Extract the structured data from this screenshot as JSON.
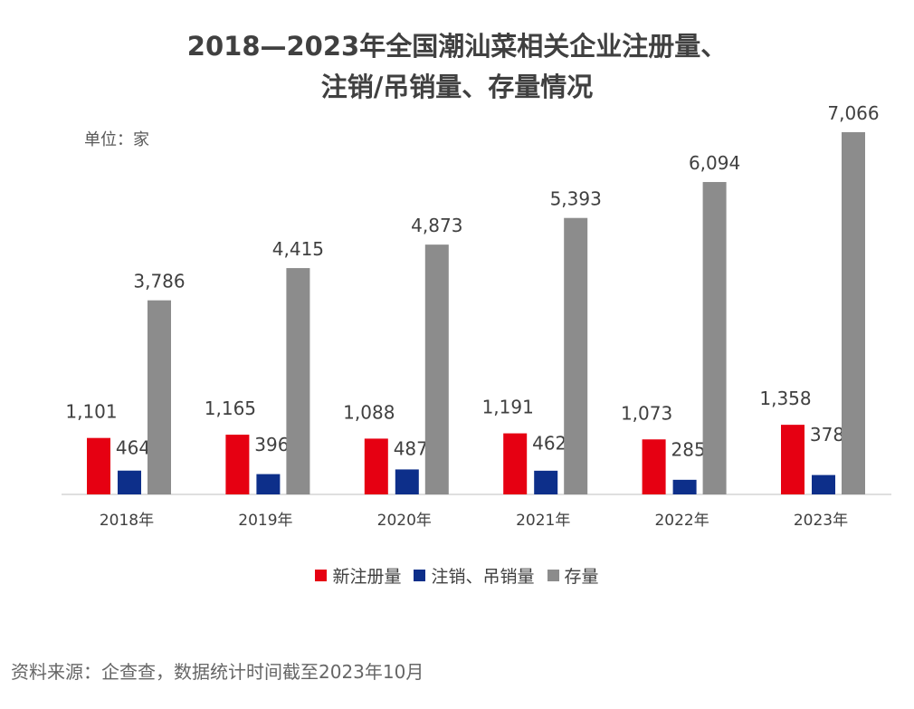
{
  "chart_data": {
    "type": "bar",
    "title_line1": "2018—2023年全国潮汕菜相关企业注册量、",
    "title_line2": "注销/吊销量、存量情况",
    "unit": "单位：家",
    "categories": [
      "2018年",
      "2019年",
      "2020年",
      "2021年",
      "2022年",
      "2023年"
    ],
    "series": [
      {
        "name": "新注册量",
        "color": "#e60012",
        "values": [
          1101,
          1165,
          1088,
          1191,
          1073,
          1358
        ]
      },
      {
        "name": "注销、吊销量",
        "color": "#0d2f8a",
        "values": [
          464,
          396,
          487,
          462,
          285,
          378
        ]
      },
      {
        "name": "存量",
        "color": "#8c8c8c",
        "values": [
          3786,
          4415,
          4873,
          5393,
          6094,
          7066
        ]
      }
    ],
    "ylim": [
      0,
      7066
    ],
    "grid": false,
    "legend_position": "bottom",
    "source": "资料来源：企查查，数据统计时间截至2023年10月"
  }
}
